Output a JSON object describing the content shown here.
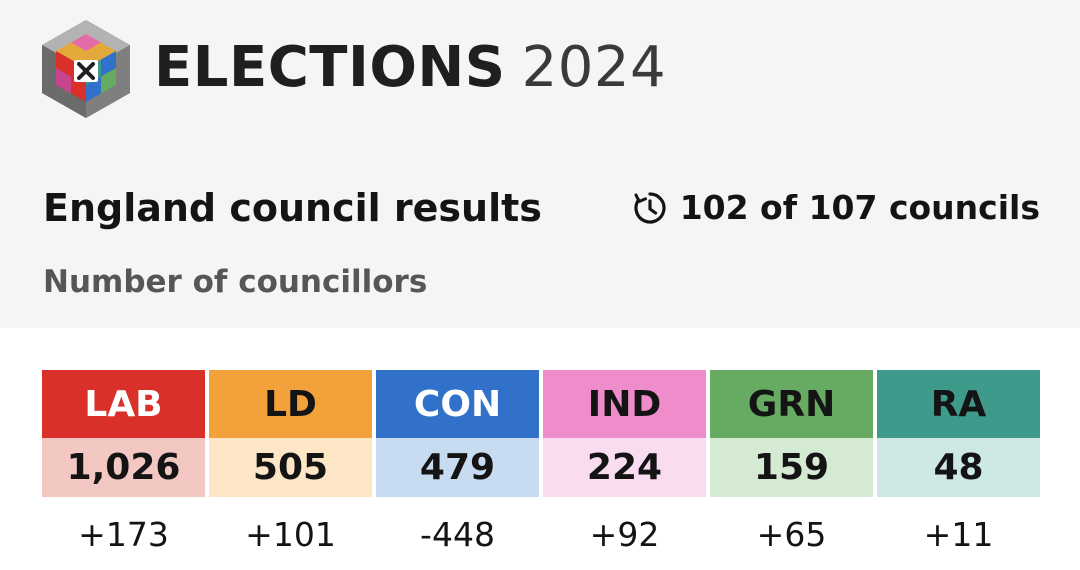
{
  "header": {
    "logo_icon": "elections-cube-x-icon",
    "brand_word": "ELECTIONS",
    "brand_year": "2024",
    "title": "England council results",
    "progress_icon": "clock-refresh-icon",
    "progress_text": "102 of 107 councils",
    "subtitle": "Number of councillors"
  },
  "parties": [
    {
      "code": "LAB",
      "seats": "1,026",
      "change": "+173",
      "color": "#d9312a",
      "text_color": "#ffffff",
      "light": "#f3c8c3"
    },
    {
      "code": "LD",
      "seats": "505",
      "change": "+101",
      "color": "#f3a23b",
      "text_color": "#141414",
      "light": "#fde6c6"
    },
    {
      "code": "CON",
      "seats": "479",
      "change": "-448",
      "color": "#3271c9",
      "text_color": "#ffffff",
      "light": "#c7dcf1"
    },
    {
      "code": "IND",
      "seats": "224",
      "change": "+92",
      "color": "#ef8cca",
      "text_color": "#141414",
      "light": "#f9dcef"
    },
    {
      "code": "GRN",
      "seats": "159",
      "change": "+65",
      "color": "#67ab63",
      "text_color": "#141414",
      "light": "#d5ead3"
    },
    {
      "code": "RA",
      "seats": "48",
      "change": "+11",
      "color": "#3e9a8b",
      "text_color": "#141414",
      "light": "#cde8e5"
    }
  ]
}
